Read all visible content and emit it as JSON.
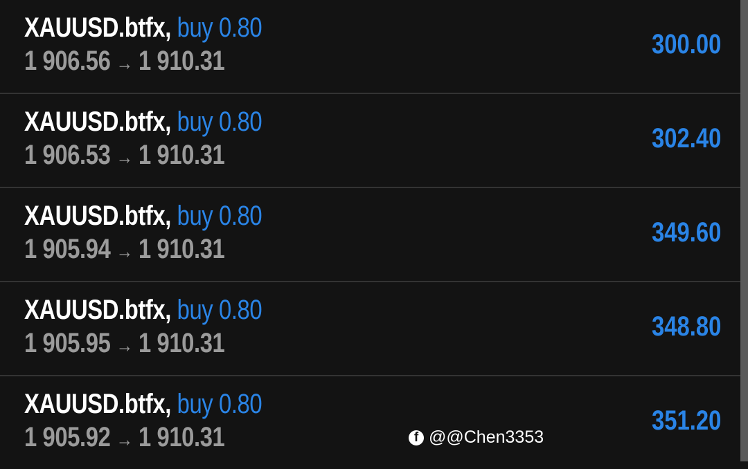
{
  "positions": [
    {
      "symbol": "XAUUSD.btfx,",
      "side": "buy 0.80",
      "open": "1 906.56",
      "arrow": "→",
      "current": "1 910.31",
      "profit": "300.00"
    },
    {
      "symbol": "XAUUSD.btfx,",
      "side": "buy 0.80",
      "open": "1 906.53",
      "arrow": "→",
      "current": "1 910.31",
      "profit": "302.40"
    },
    {
      "symbol": "XAUUSD.btfx,",
      "side": "buy 0.80",
      "open": "1 905.94",
      "arrow": "→",
      "current": "1 910.31",
      "profit": "349.60"
    },
    {
      "symbol": "XAUUSD.btfx,",
      "side": "buy 0.80",
      "open": "1 905.95",
      "arrow": "→",
      "current": "1 910.31",
      "profit": "348.80"
    },
    {
      "symbol": "XAUUSD.btfx,",
      "side": "buy 0.80",
      "open": "1 905.92",
      "arrow": "→",
      "current": "1 910.31",
      "profit": "351.20"
    }
  ],
  "watermark": {
    "icon": "facebook-icon",
    "text": "@@Chen3353"
  },
  "colors": {
    "background": "#131313",
    "profit": "#2a84e6",
    "price": "#9b9b9b"
  }
}
